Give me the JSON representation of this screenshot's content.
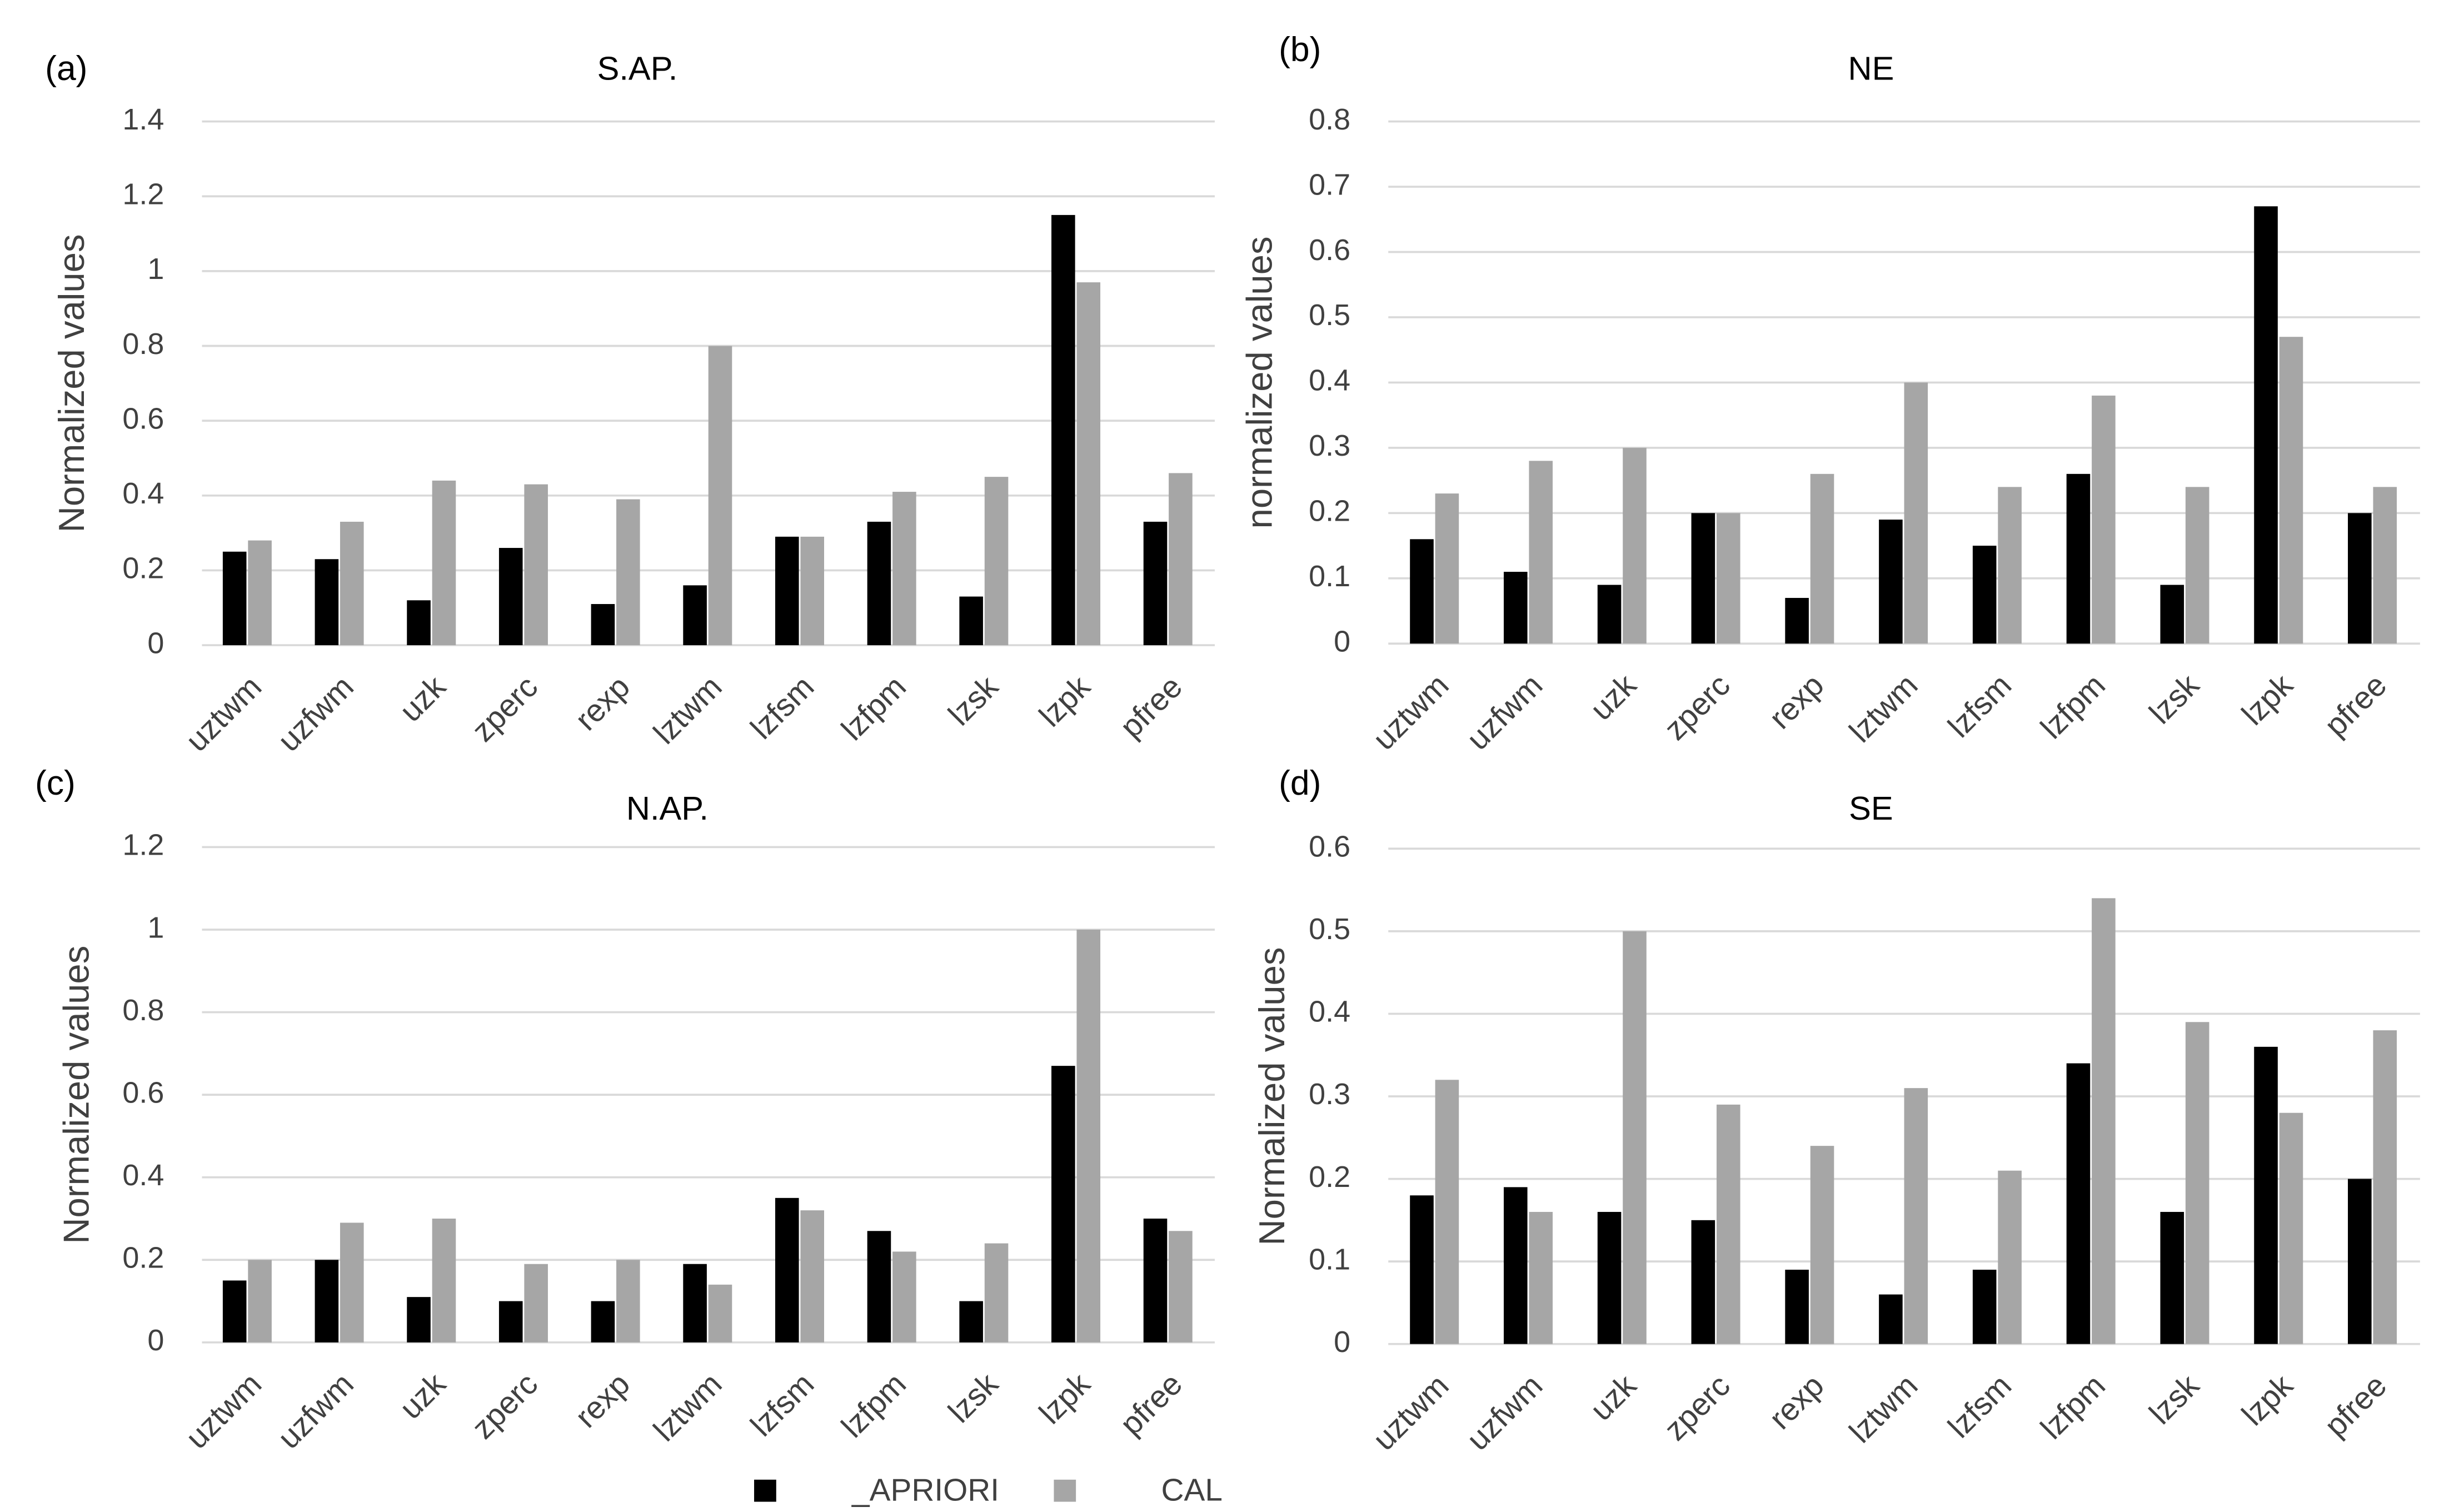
{
  "chart_data": [
    {
      "type": "bar",
      "panel": "(a)",
      "title": "S.AP.",
      "y_label": "Normalized values",
      "categories": [
        "uztwm",
        "uzfwm",
        "uzk",
        "zperc",
        "rexp",
        "lztwm",
        "lzfsm",
        "lzfpm",
        "lzsk",
        "lzpk",
        "pfree"
      ],
      "series": [
        {
          "name": "_APRIORI",
          "color": "#000000",
          "values": [
            0.25,
            0.23,
            0.12,
            0.26,
            0.11,
            0.16,
            0.29,
            0.33,
            0.13,
            1.15,
            0.33
          ]
        },
        {
          "name": "CAL",
          "color": "#a6a6a6",
          "values": [
            0.28,
            0.33,
            0.44,
            0.43,
            0.39,
            0.8,
            0.29,
            0.41,
            0.45,
            0.97,
            0.46
          ]
        }
      ],
      "ylim": [
        0,
        1.4
      ],
      "yticks": [
        0,
        0.2,
        0.4,
        0.6,
        0.8,
        1,
        1.2,
        1.4
      ],
      "grid": true
    },
    {
      "type": "bar",
      "panel": "(b)",
      "title": "NE",
      "y_label": "normalized values",
      "categories": [
        "uztwm",
        "uzfwm",
        "uzk",
        "zperc",
        "rexp",
        "lztwm",
        "lzfsm",
        "lzfpm",
        "lzsk",
        "lzpk",
        "pfree"
      ],
      "series": [
        {
          "name": "_APRIORI",
          "color": "#000000",
          "values": [
            0.16,
            0.11,
            0.09,
            0.2,
            0.07,
            0.19,
            0.15,
            0.26,
            0.09,
            0.67,
            0.2
          ]
        },
        {
          "name": "CAL",
          "color": "#a6a6a6",
          "values": [
            0.23,
            0.28,
            0.3,
            0.2,
            0.26,
            0.4,
            0.24,
            0.38,
            0.24,
            0.47,
            0.24
          ]
        }
      ],
      "ylim": [
        0,
        0.8
      ],
      "yticks": [
        0,
        0.1,
        0.2,
        0.3,
        0.4,
        0.5,
        0.6,
        0.7,
        0.8
      ],
      "grid": true
    },
    {
      "type": "bar",
      "panel": "(c)",
      "title": "N.AP.",
      "y_label": "Normalized values",
      "categories": [
        "uztwm",
        "uzfwm",
        "uzk",
        "zperc",
        "rexp",
        "lztwm",
        "lzfsm",
        "lzfpm",
        "lzsk",
        "lzpk",
        "pfree"
      ],
      "series": [
        {
          "name": "_APRIORI",
          "color": "#000000",
          "values": [
            0.15,
            0.2,
            0.11,
            0.1,
            0.1,
            0.19,
            0.35,
            0.27,
            0.1,
            0.67,
            0.3
          ]
        },
        {
          "name": "CAL",
          "color": "#a6a6a6",
          "values": [
            0.2,
            0.29,
            0.3,
            0.19,
            0.2,
            0.14,
            0.32,
            0.22,
            0.24,
            1.0,
            0.27
          ]
        }
      ],
      "ylim": [
        0,
        1.2
      ],
      "yticks": [
        0,
        0.2,
        0.4,
        0.6,
        0.8,
        1,
        1.2
      ],
      "grid": true
    },
    {
      "type": "bar",
      "panel": "(d)",
      "title": "SE",
      "y_label": "Normalized values",
      "categories": [
        "uztwm",
        "uzfwm",
        "uzk",
        "zperc",
        "rexp",
        "lztwm",
        "lzfsm",
        "lzfpm",
        "lzsk",
        "lzpk",
        "pfree"
      ],
      "series": [
        {
          "name": "_APRIORI",
          "color": "#000000",
          "values": [
            0.18,
            0.19,
            0.16,
            0.15,
            0.09,
            0.06,
            0.09,
            0.34,
            0.16,
            0.36,
            0.2
          ]
        },
        {
          "name": "CAL",
          "color": "#a6a6a6",
          "values": [
            0.32,
            0.16,
            0.5,
            0.29,
            0.24,
            0.31,
            0.21,
            0.54,
            0.39,
            0.28,
            0.38
          ]
        }
      ],
      "ylim": [
        0,
        0.6
      ],
      "yticks": [
        0,
        0.1,
        0.2,
        0.3,
        0.4,
        0.5,
        0.6
      ],
      "grid": true
    }
  ]
}
